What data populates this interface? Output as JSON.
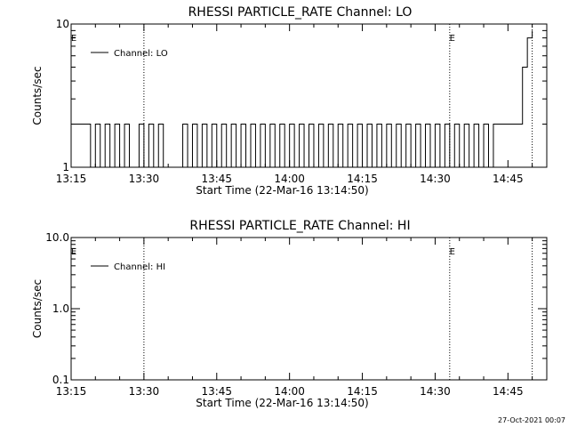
{
  "chart_data": [
    {
      "type": "line",
      "title": "RHESSI PARTICLE_RATE Channel: LO",
      "xlabel": "Start Time (22-Mar-16 13:14:50)",
      "ylabel": "Counts/sec",
      "yscale": "log",
      "ylim": [
        1,
        10
      ],
      "ytick_labels": [
        "1",
        "10"
      ],
      "xlim": [
        "13:15",
        "14:53"
      ],
      "xtick_labels": [
        "13:15",
        "13:30",
        "13:45",
        "14:00",
        "14:15",
        "14:30",
        "14:45"
      ],
      "event_markers": [
        {
          "label": "E",
          "time": "13:15"
        },
        {
          "label": "E",
          "time": "14:33"
        }
      ],
      "vertical_lines": [
        "13:30",
        "14:33",
        "14:50"
      ],
      "legend": {
        "label": "Channel: LO",
        "position": "top-left"
      },
      "series": [
        {
          "name": "Channel: LO",
          "x": [
            "13:15",
            "13:18",
            "13:19",
            "13:20",
            "13:21",
            "13:22",
            "13:23",
            "13:24",
            "13:25",
            "13:26",
            "13:27",
            "13:29",
            "13:30",
            "13:31",
            "13:32",
            "13:33",
            "13:34",
            "13:36",
            "13:38",
            "13:39",
            "13:40",
            "13:41",
            "13:42",
            "13:43",
            "13:44",
            "13:45",
            "13:46",
            "13:47",
            "13:48",
            "13:49",
            "13:50",
            "13:51",
            "13:52",
            "13:53",
            "13:54",
            "13:55",
            "13:56",
            "13:57",
            "13:58",
            "13:59",
            "14:00",
            "14:01",
            "14:02",
            "14:03",
            "14:04",
            "14:05",
            "14:06",
            "14:07",
            "14:08",
            "14:09",
            "14:10",
            "14:11",
            "14:12",
            "14:13",
            "14:14",
            "14:15",
            "14:16",
            "14:17",
            "14:18",
            "14:19",
            "14:20",
            "14:21",
            "14:22",
            "14:23",
            "14:24",
            "14:25",
            "14:26",
            "14:27",
            "14:28",
            "14:29",
            "14:30",
            "14:31",
            "14:32",
            "14:33",
            "14:34",
            "14:35",
            "14:36",
            "14:37",
            "14:38",
            "14:39",
            "14:40",
            "14:41",
            "14:42",
            "14:43",
            "14:44",
            "14:45",
            "14:46",
            "14:47",
            "14:48",
            "14:49",
            "14:50"
          ],
          "y": [
            2,
            2,
            1,
            2,
            1,
            2,
            1,
            2,
            1,
            2,
            1,
            2,
            1,
            2,
            1,
            2,
            1,
            1,
            2,
            1,
            2,
            1,
            2,
            1,
            2,
            1,
            2,
            1,
            2,
            1,
            2,
            1,
            2,
            1,
            2,
            1,
            2,
            1,
            2,
            1,
            2,
            1,
            2,
            1,
            2,
            1,
            2,
            1,
            2,
            1,
            2,
            1,
            2,
            1,
            2,
            1,
            2,
            1,
            2,
            1,
            2,
            1,
            2,
            1,
            2,
            1,
            2,
            1,
            2,
            1,
            2,
            1,
            2,
            1,
            2,
            1,
            2,
            1,
            2,
            1,
            2,
            1,
            2,
            2,
            2,
            2,
            2,
            2,
            5,
            8,
            9
          ]
        }
      ]
    },
    {
      "type": "line",
      "title": "RHESSI PARTICLE_RATE Channel: HI",
      "xlabel": "Start Time (22-Mar-16 13:14:50)",
      "ylabel": "Counts/sec",
      "yscale": "log",
      "ylim": [
        0.1,
        10
      ],
      "ytick_labels": [
        "0.1",
        "1.0",
        "10.0"
      ],
      "xlim": [
        "13:15",
        "14:53"
      ],
      "xtick_labels": [
        "13:15",
        "13:30",
        "13:45",
        "14:00",
        "14:15",
        "14:30",
        "14:45"
      ],
      "event_markers": [
        {
          "label": "E",
          "time": "13:15"
        },
        {
          "label": "E",
          "time": "14:33"
        }
      ],
      "vertical_lines": [
        "13:30",
        "14:33",
        "14:50"
      ],
      "legend": {
        "label": "Channel: HI",
        "position": "top-left"
      },
      "series": [
        {
          "name": "Channel: HI",
          "x": [],
          "y": []
        }
      ]
    }
  ],
  "footer": {
    "timestamp": "27-Oct-2021 00:07"
  }
}
